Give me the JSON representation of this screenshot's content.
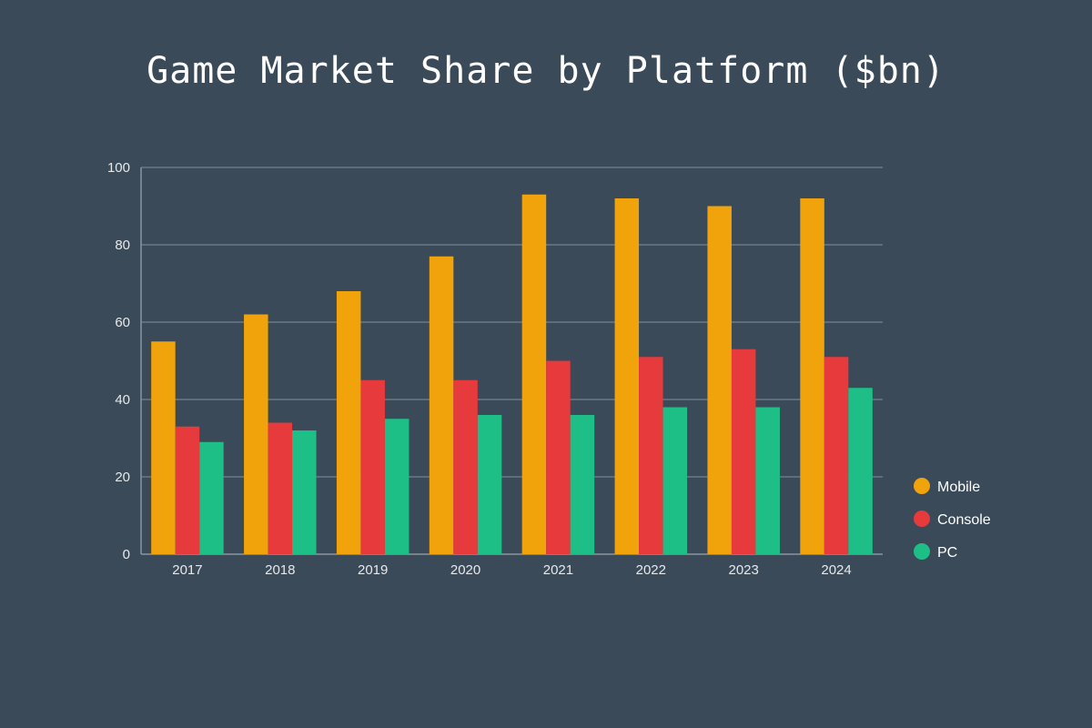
{
  "chart_data": {
    "type": "bar",
    "title": "Game Market Share by Platform ($bn)",
    "categories": [
      "2017",
      "2018",
      "2019",
      "2020",
      "2021",
      "2022",
      "2023",
      "2024"
    ],
    "series": [
      {
        "name": "Mobile",
        "color": "#f0a30a",
        "values": [
          55,
          62,
          68,
          77,
          93,
          92,
          90,
          92
        ]
      },
      {
        "name": "Console",
        "color": "#e63a3c",
        "values": [
          33,
          34,
          45,
          45,
          50,
          51,
          53,
          51
        ]
      },
      {
        "name": "PC",
        "color": "#1dbf86",
        "values": [
          29,
          32,
          35,
          36,
          36,
          38,
          38,
          43
        ]
      }
    ],
    "ylim": [
      0,
      100
    ],
    "yticks": [
      0,
      20,
      40,
      60,
      80,
      100
    ],
    "xlabel": "",
    "ylabel": "",
    "grid": true,
    "legend_position": "right"
  }
}
